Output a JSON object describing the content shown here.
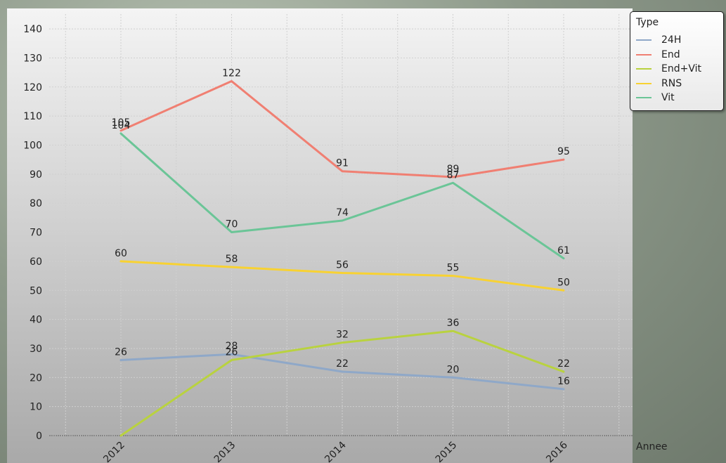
{
  "chart_data": {
    "type": "line",
    "title": "",
    "xlabel": "Annee",
    "ylabel": "",
    "categories": [
      "2012",
      "2013",
      "2014",
      "2015",
      "2016"
    ],
    "ylim": [
      0,
      140
    ],
    "yticks": [
      "0",
      "10",
      "20",
      "30",
      "40",
      "50",
      "60",
      "70",
      "80",
      "90",
      "100",
      "110",
      "120",
      "130",
      "140"
    ],
    "grid": true,
    "legend_title": "Type",
    "legend_position": "top-right",
    "series": [
      {
        "name": "24H",
        "color": "#8fa8c8",
        "values": [
          26,
          28,
          22,
          20,
          16
        ],
        "labels": [
          "26",
          "28",
          "22",
          "20",
          "16"
        ]
      },
      {
        "name": "End",
        "color": "#f07f72",
        "values": [
          105,
          122,
          91,
          89,
          95
        ],
        "labels": [
          "105",
          "122",
          "91",
          "89",
          "95"
        ]
      },
      {
        "name": "End+Vit",
        "color": "#b9d23f",
        "values": [
          0,
          26,
          32,
          36,
          22
        ],
        "labels": [
          "",
          "26",
          "32",
          "36",
          "22"
        ]
      },
      {
        "name": "RNS",
        "color": "#f8d232",
        "values": [
          60,
          58,
          56,
          55,
          50
        ],
        "labels": [
          "60",
          "58",
          "56",
          "55",
          "50"
        ]
      },
      {
        "name": "Vit",
        "color": "#6bc597",
        "values": [
          104,
          70,
          74,
          87,
          61
        ],
        "labels": [
          "104",
          "70",
          "74",
          "87",
          "61"
        ]
      }
    ]
  }
}
